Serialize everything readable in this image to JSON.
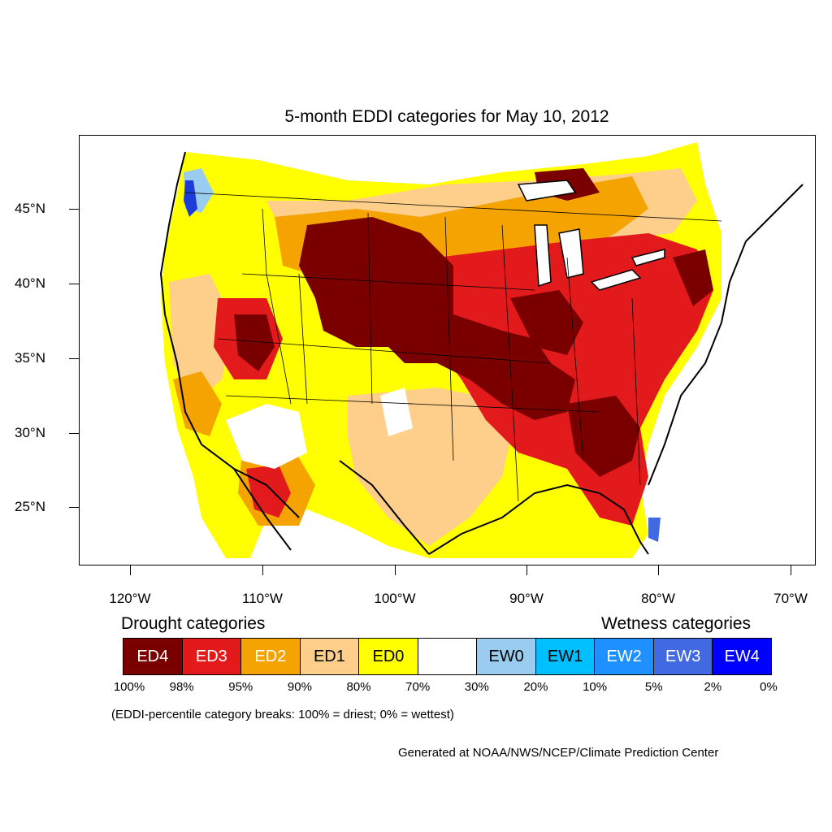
{
  "title": "5-month EDDI categories for May 10, 2012",
  "axes": {
    "latitudes": [
      "45°N",
      "40°N",
      "35°N",
      "30°N",
      "25°N"
    ],
    "longitudes": [
      "120°W",
      "110°W",
      "100°W",
      "90°W",
      "80°W",
      "70°W"
    ]
  },
  "legend": {
    "drought_heading": "Drought categories",
    "wetness_heading": "Wetness categories",
    "categories": [
      {
        "label": "ED4",
        "color": "#7a0000",
        "text_color": "#ffffff"
      },
      {
        "label": "ED3",
        "color": "#e31a1c",
        "text_color": "#ffffff"
      },
      {
        "label": "ED2",
        "color": "#f5a300",
        "text_color": "#ffffff"
      },
      {
        "label": "ED1",
        "color": "#fdcf8b",
        "text_color": "#000000"
      },
      {
        "label": "ED0",
        "color": "#ffff00",
        "text_color": "#000000"
      },
      {
        "label": "",
        "color": "#ffffff",
        "text_color": "#000000"
      },
      {
        "label": "EW0",
        "color": "#99ccee",
        "text_color": "#000000"
      },
      {
        "label": "EW1",
        "color": "#00bfff",
        "text_color": "#000000"
      },
      {
        "label": "EW2",
        "color": "#1e90ff",
        "text_color": "#ffffff"
      },
      {
        "label": "EW3",
        "color": "#4169e1",
        "text_color": "#ffffff"
      },
      {
        "label": "EW4",
        "color": "#0000ff",
        "text_color": "#ffffff"
      }
    ],
    "breaks": [
      "100%",
      "98%",
      "95%",
      "90%",
      "80%",
      "70%",
      "30%",
      "20%",
      "10%",
      "5%",
      "2%",
      "0%"
    ]
  },
  "note": "(EDDI-percentile category breaks: 100% = driest; 0% = wettest)",
  "credit": "Generated at NOAA/NWS/NCEP/Climate Prediction Center"
}
